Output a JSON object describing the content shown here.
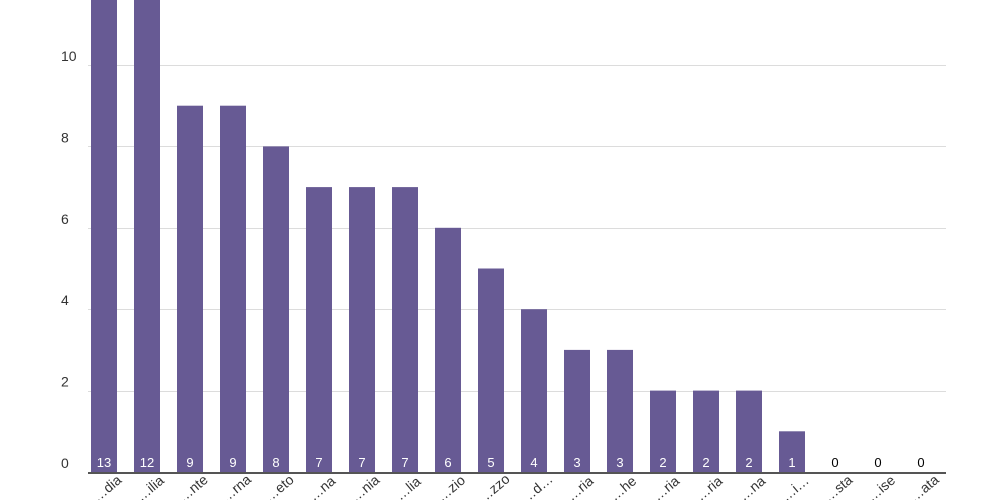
{
  "chart_data": {
    "type": "bar",
    "categories": [
      "…dia",
      "…ilia",
      "…nte",
      "…rna",
      "…eto",
      "…na",
      "…nia",
      "…lia",
      "…zio",
      "…zzo",
      "…d…",
      "…ria",
      "…he",
      "…ria",
      "…ria",
      "…na",
      "…i…",
      "…sta",
      "…ise",
      "…ata"
    ],
    "values": [
      13,
      12,
      9,
      9,
      8,
      7,
      7,
      7,
      6,
      5,
      4,
      3,
      3,
      2,
      2,
      2,
      1,
      0,
      0,
      0
    ],
    "data_labels": [
      "13",
      "12",
      "9",
      "9",
      "8",
      "7",
      "7",
      "7",
      "6",
      "5",
      "4",
      "3",
      "3",
      "2",
      "2",
      "2",
      "1",
      "0",
      "0",
      "0"
    ],
    "yticks": [
      0,
      2,
      4,
      6,
      8,
      10
    ],
    "ytick_labels": [
      "0",
      "2",
      "4",
      "6",
      "8",
      "10"
    ],
    "ylim": [
      0,
      12
    ],
    "grid": true,
    "legend": "none",
    "title": "",
    "xlabel": "",
    "ylabel": "",
    "colors": {
      "bar": "#675a94",
      "grid": "#dcdcdc",
      "baseline": "#555555",
      "label_inside": "#ffffff",
      "label_outside": "#000000"
    }
  }
}
